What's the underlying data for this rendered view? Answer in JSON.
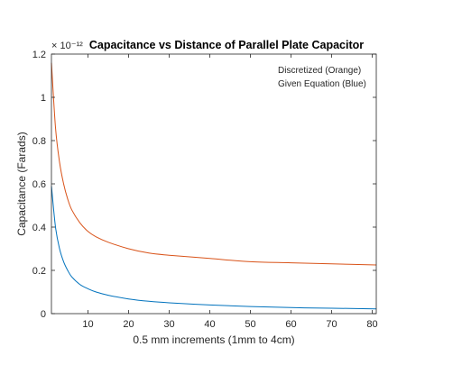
{
  "chart_data": {
    "type": "line",
    "title": "Capacitance vs Distance of Parallel Plate Capacitor",
    "xlabel": "0.5 mm increments (1mm to 4cm)",
    "ylabel": "Capacitance (Farads)",
    "y_multiplier": "× 10⁻¹²",
    "xlim": [
      1,
      81
    ],
    "ylim": [
      0,
      1.2
    ],
    "xticks": [
      10,
      20,
      30,
      40,
      50,
      60,
      70,
      80
    ],
    "yticks": [
      0,
      0.2,
      0.4,
      0.6,
      0.8,
      1,
      1.2
    ],
    "ytick_labels": [
      "0",
      "0.2",
      "0.4",
      "0.6",
      "0.8",
      "1",
      "1.2"
    ],
    "grid": false,
    "legend_text": [
      "Discretized (Orange)",
      "Given Equation (Blue)"
    ],
    "series": [
      {
        "color": "#d95319",
        "x": [
          1,
          2,
          3,
          4,
          5,
          6,
          8,
          10,
          12,
          15,
          20,
          25,
          30,
          40,
          50,
          60,
          70,
          81
        ],
        "values": [
          1.16,
          0.86,
          0.7,
          0.6,
          0.53,
          0.48,
          0.42,
          0.38,
          0.355,
          0.33,
          0.3,
          0.28,
          0.27,
          0.255,
          0.24,
          0.235,
          0.23,
          0.225
        ]
      },
      {
        "color": "#0072bd",
        "x": [
          1,
          2,
          3,
          4,
          5,
          6,
          8,
          10,
          12,
          15,
          20,
          25,
          30,
          40,
          50,
          60,
          70,
          81
        ],
        "values": [
          0.59,
          0.4,
          0.3,
          0.24,
          0.2,
          0.17,
          0.135,
          0.115,
          0.1,
          0.085,
          0.068,
          0.057,
          0.05,
          0.04,
          0.033,
          0.028,
          0.025,
          0.022
        ]
      }
    ]
  }
}
